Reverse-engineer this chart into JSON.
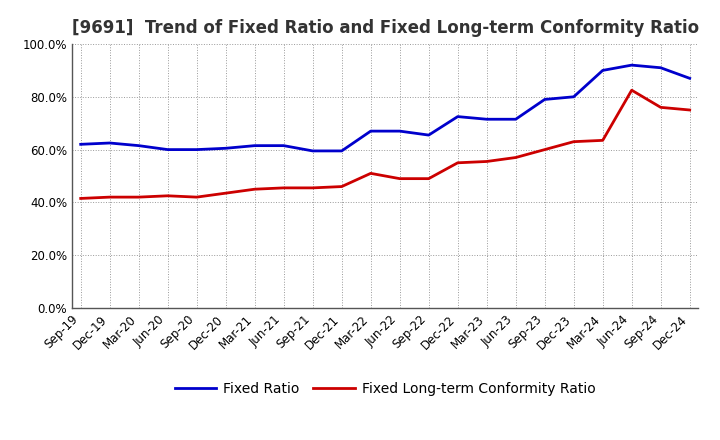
{
  "title": "[9691]  Trend of Fixed Ratio and Fixed Long-term Conformity Ratio",
  "x_labels": [
    "Sep-19",
    "Dec-19",
    "Mar-20",
    "Jun-20",
    "Sep-20",
    "Dec-20",
    "Mar-21",
    "Jun-21",
    "Sep-21",
    "Dec-21",
    "Mar-22",
    "Jun-22",
    "Sep-22",
    "Dec-22",
    "Mar-23",
    "Jun-23",
    "Sep-23",
    "Dec-23",
    "Mar-24",
    "Jun-24",
    "Sep-24",
    "Dec-24"
  ],
  "fixed_ratio": [
    62.0,
    62.5,
    61.5,
    60.0,
    60.0,
    60.5,
    61.5,
    61.5,
    59.5,
    59.5,
    67.0,
    67.0,
    65.5,
    72.5,
    71.5,
    71.5,
    79.0,
    80.0,
    90.0,
    92.0,
    91.0,
    87.0
  ],
  "fixed_lt_ratio": [
    41.5,
    42.0,
    42.0,
    42.5,
    42.0,
    43.5,
    45.0,
    45.5,
    45.5,
    46.0,
    51.0,
    49.0,
    49.0,
    55.0,
    55.5,
    57.0,
    60.0,
    63.0,
    63.5,
    82.5,
    76.0,
    75.0
  ],
  "fixed_ratio_color": "#0000cc",
  "fixed_lt_ratio_color": "#cc0000",
  "bg_color": "#ffffff",
  "plot_bg_color": "#ffffff",
  "grid_color": "#999999",
  "ylim": [
    0,
    100
  ],
  "yticks": [
    0,
    20,
    40,
    60,
    80,
    100
  ],
  "ytick_labels": [
    "0.0%",
    "20.0%",
    "40.0%",
    "60.0%",
    "80.0%",
    "100.0%"
  ],
  "legend_fixed_ratio": "Fixed Ratio",
  "legend_fixed_lt_ratio": "Fixed Long-term Conformity Ratio",
  "title_fontsize": 12,
  "axis_fontsize": 8.5,
  "legend_fontsize": 10
}
